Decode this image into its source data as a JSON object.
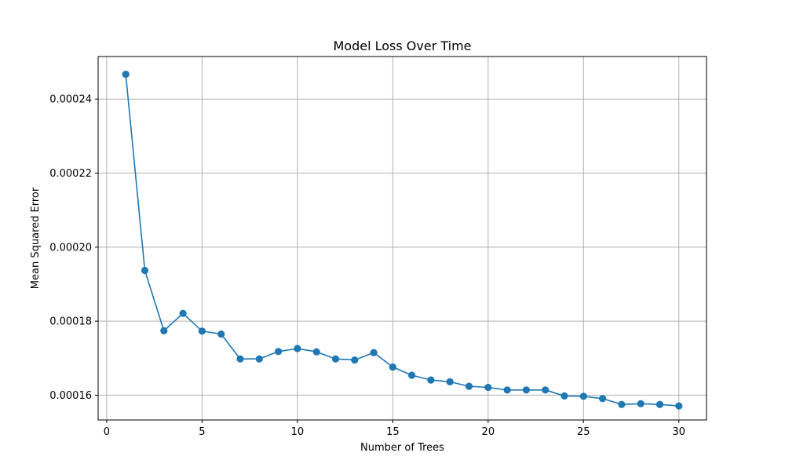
{
  "chart_data": {
    "type": "line",
    "title": "Model Loss Over Time",
    "xlabel": "Number of Trees",
    "ylabel": "Mean Squared Error",
    "xlim": [
      -0.45,
      31.45
    ],
    "ylim": [
      0.0001533,
      0.0002515
    ],
    "xticks": [
      0,
      5,
      10,
      15,
      20,
      25,
      30
    ],
    "xtick_labels": [
      "0",
      "5",
      "10",
      "15",
      "20",
      "25",
      "30"
    ],
    "yticks": [
      0.00016,
      0.00018,
      0.0002,
      0.00022,
      0.00024
    ],
    "ytick_labels": [
      "0.00016",
      "0.00018",
      "0.00020",
      "0.00022",
      "0.00024"
    ],
    "grid": true,
    "series": [
      {
        "color": "#1f77b4",
        "marker": "circle",
        "x": [
          1,
          2,
          3,
          4,
          5,
          6,
          7,
          8,
          9,
          10,
          11,
          12,
          13,
          14,
          15,
          16,
          17,
          18,
          19,
          20,
          21,
          22,
          23,
          24,
          25,
          26,
          27,
          28,
          29,
          30
        ],
        "y": [
          0.0002467,
          0.0001937,
          0.0001774,
          0.0001821,
          0.0001773,
          0.0001765,
          0.0001698,
          0.0001698,
          0.0001718,
          0.0001726,
          0.0001717,
          0.0001698,
          0.0001695,
          0.0001715,
          0.0001676,
          0.0001654,
          0.0001641,
          0.0001636,
          0.0001624,
          0.0001621,
          0.0001614,
          0.0001614,
          0.0001614,
          0.0001598,
          0.0001597,
          0.0001591,
          0.0001575,
          0.0001577,
          0.0001575,
          0.0001571
        ]
      }
    ]
  }
}
